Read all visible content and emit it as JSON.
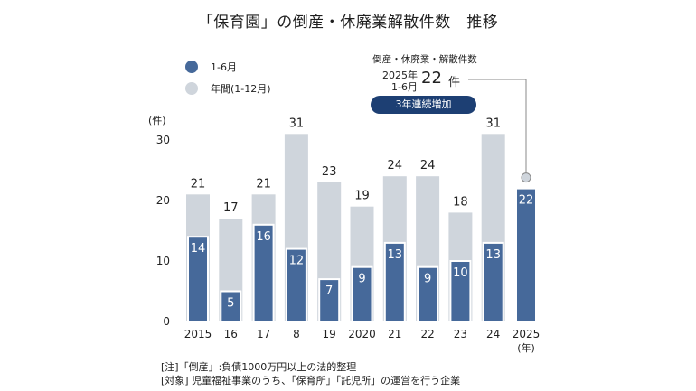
{
  "title": "「保育園」の倒産・休廃業解散件数　推移",
  "legend": {
    "half_year_label": "1-6月",
    "full_year_label": "年間(1-12月)"
  },
  "callout": {
    "subtitle": "倒産・休廃業・解散件数",
    "period_line1": "2025年",
    "period_line2": "1-6月",
    "value": "22",
    "unit": "件",
    "badge": "3年連続増加"
  },
  "notes": {
    "note1": "[注]「倒産」:負債1000万円以上の法的整理",
    "note2": "[対象] 児童福祉事業のうち、「保育所」「託児所」の運営を行う企業"
  },
  "colors": {
    "half_year": "#46699a",
    "full_year": "#cfd5dc",
    "badge": "#1d3f73"
  },
  "chart_data": {
    "type": "bar",
    "categories": [
      "2015",
      "16",
      "17",
      "8",
      "19",
      "2020",
      "21",
      "22",
      "23",
      "24",
      "2025"
    ],
    "series": [
      {
        "name": "年間(1-12月)",
        "values": [
          21,
          17,
          21,
          31,
          23,
          19,
          24,
          24,
          18,
          31,
          null
        ]
      },
      {
        "name": "1-6月",
        "values": [
          14,
          5,
          16,
          12,
          7,
          9,
          13,
          9,
          10,
          13,
          22
        ]
      }
    ],
    "yunit": "(件)",
    "xunit": "(年)",
    "ylim": [
      0,
      32
    ],
    "yticks": [
      0,
      10,
      20,
      30
    ],
    "grid": false,
    "legend_position": "top-left"
  }
}
